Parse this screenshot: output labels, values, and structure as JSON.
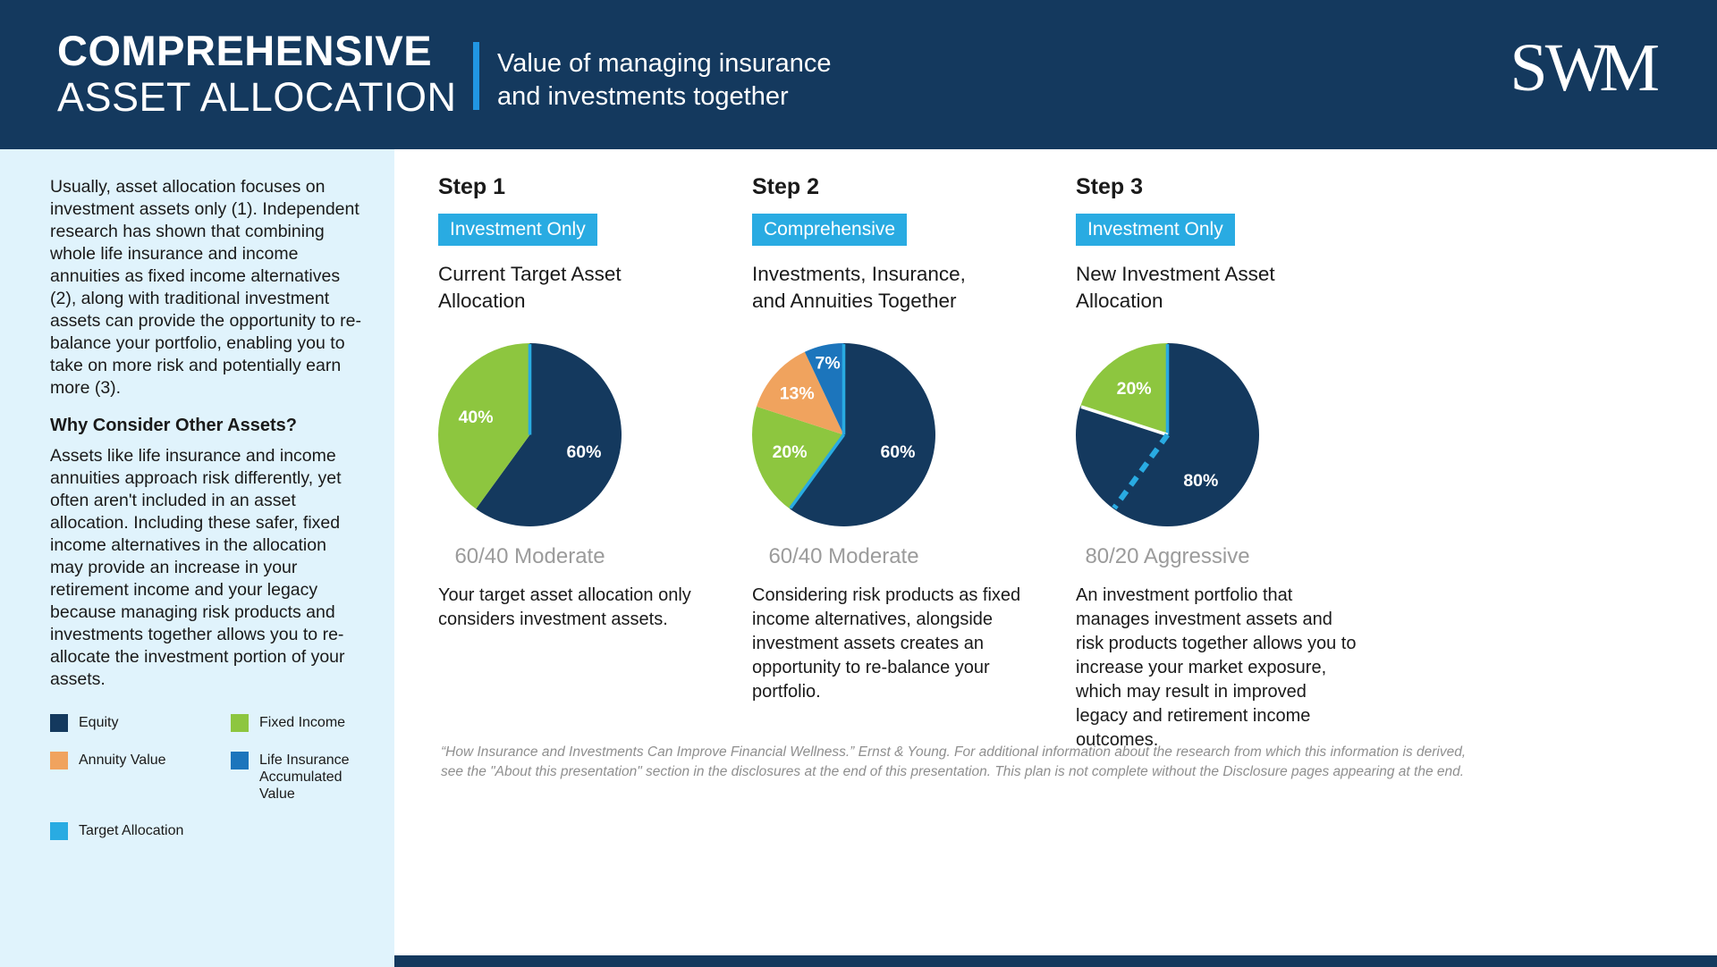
{
  "theme": {
    "navy": "#14395E",
    "green": "#8DC63F",
    "orange": "#F0A35E",
    "blue": "#1C75BC",
    "cyan": "#29ABE2",
    "accent_blue": "#2196E3",
    "sidebar_bg": "#E0F3FC",
    "caption_gray": "#9B9B9B",
    "footer_gray": "#8F8F8F"
  },
  "header": {
    "title_line1": "COMPREHENSIVE",
    "title_line2": "ASSET ALLOCATION",
    "subtitle_line1": "Value of managing insurance",
    "subtitle_line2": "and investments together",
    "logo_letters": [
      "S",
      "W",
      "M"
    ]
  },
  "sidebar": {
    "intro": "Usually, asset allocation focuses on investment assets only (1). Independent research has shown that combining whole life insurance and income annuities as fixed income alternatives (2), along with traditional investment assets can provide the opportunity to re-balance your portfolio, enabling you to take on more risk and potentially earn more (3).",
    "heading": "Why Consider Other Assets?",
    "body": "Assets like life insurance and income annuities approach risk differently, yet often aren't included in an asset allocation. Including these safer, fixed income alternatives in the allocation may provide an increase in your retirement income and your legacy because managing risk products and investments together allows you to re-allocate the investment portion of your assets.",
    "legend": [
      {
        "label": "Equity",
        "color": "#14395E"
      },
      {
        "label": "Fixed Income",
        "color": "#8DC63F"
      },
      {
        "label": "Annuity Value",
        "color": "#F0A35E"
      },
      {
        "label": "Life Insurance Accumulated Value",
        "color": "#1C75BC"
      },
      {
        "label": "Target Allocation",
        "color": "#29ABE2"
      }
    ]
  },
  "steps": [
    {
      "step_label": "Step 1",
      "badge": "Investment Only",
      "title": "Current Target Asset Allocation",
      "caption": "60/40 Moderate",
      "description": "Your target asset allocation only considers investment assets."
    },
    {
      "step_label": "Step 2",
      "badge": "Comprehensive",
      "title": "Investments, Insurance, and Annuities Together",
      "caption": "60/40 Moderate",
      "description": "Considering risk products as fixed income alternatives, alongside investment assets creates an opportunity to re-balance your portfolio."
    },
    {
      "step_label": "Step 3",
      "badge": "Investment Only",
      "title": "New Investment Asset Allocation",
      "caption": "80/20 Aggressive",
      "description": "An investment portfolio that manages investment assets and risk products together allows you to increase your market exposure, which may result in improved legacy and retirement income outcomes."
    }
  ],
  "chart_data": [
    {
      "type": "pie",
      "title": "Current Target Asset Allocation",
      "caption": "60/40 Moderate",
      "start_angle_deg": 0,
      "slices": [
        {
          "label": "Equity",
          "value": 60,
          "color": "#14395E",
          "data_label": "60%"
        },
        {
          "label": "Fixed Income",
          "value": 40,
          "color": "#8DC63F",
          "data_label": "40%"
        }
      ],
      "markers": [
        {
          "angle_deg": 0,
          "color": "#29ABE2",
          "style": "solid"
        }
      ]
    },
    {
      "type": "pie",
      "title": "Investments, Insurance, and Annuities Together",
      "caption": "60/40 Moderate",
      "start_angle_deg": 0,
      "slices": [
        {
          "label": "Equity",
          "value": 60,
          "color": "#14395E",
          "data_label": "60%"
        },
        {
          "label": "Fixed Income",
          "value": 20,
          "color": "#8DC63F",
          "data_label": "20%"
        },
        {
          "label": "Annuity Value",
          "value": 13,
          "color": "#F0A35E",
          "data_label": "13%"
        },
        {
          "label": "Life Insurance Accumulated Value",
          "value": 7,
          "color": "#1C75BC",
          "data_label": "7%"
        }
      ],
      "markers": [
        {
          "angle_deg": 0,
          "color": "#29ABE2",
          "style": "solid"
        },
        {
          "angle_deg": 216,
          "color": "#29ABE2",
          "style": "solid"
        }
      ]
    },
    {
      "type": "pie",
      "title": "New Investment Asset Allocation",
      "caption": "80/20 Aggressive",
      "start_angle_deg": 0,
      "slices": [
        {
          "label": "Equity",
          "value": 80,
          "color": "#14395E",
          "data_label": "80%"
        },
        {
          "label": "Fixed Income",
          "value": 20,
          "color": "#8DC63F",
          "data_label": "20%"
        }
      ],
      "markers": [
        {
          "angle_deg": 0,
          "color": "#29ABE2",
          "style": "solid"
        },
        {
          "angle_deg": 288,
          "color": "#FFFFFF",
          "style": "solid"
        },
        {
          "angle_deg": 216,
          "color": "#29ABE2",
          "style": "dashed"
        }
      ]
    }
  ],
  "footer": {
    "line1": "“How Insurance and Investments Can Improve Financial Wellness.” Ernst & Young. For additional information about the research from which this information is derived,",
    "line2": "see the \"About this presentation\" section in the disclosures at the end of this presentation. This plan is not complete without the Disclosure pages appearing at the end."
  }
}
